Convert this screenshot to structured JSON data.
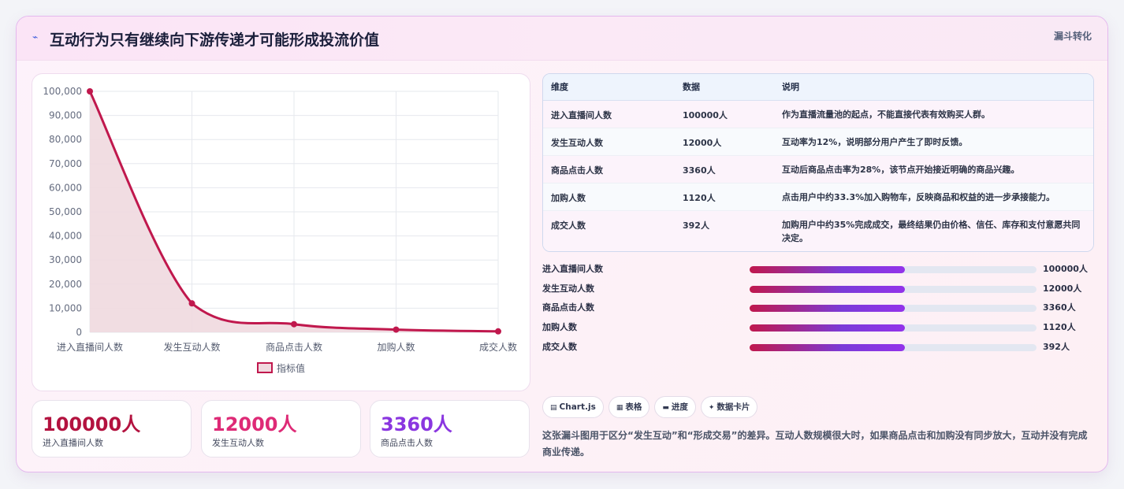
{
  "header": {
    "title": "互动行为只有继续向下游传递才可能形成投流价值",
    "tag": "漏斗转化",
    "icon": "trend-icon"
  },
  "chart_data": {
    "type": "line",
    "categories": [
      "进入直播间人数",
      "发生互动人数",
      "商品点击人数",
      "加购人数",
      "成交人数"
    ],
    "series": [
      {
        "name": "指标值",
        "values": [
          100000,
          12000,
          3360,
          1120,
          392
        ]
      }
    ],
    "ylim": [
      0,
      100000
    ],
    "yticks": [
      "100,000",
      "90,000",
      "80,000",
      "70,000",
      "60,000",
      "50,000",
      "40,000",
      "30,000",
      "20,000",
      "10,000",
      "0"
    ],
    "legend_position": "bottom",
    "fill": true,
    "colors": {
      "line": "#c0184d",
      "fill": "#f0d9df"
    }
  },
  "table": {
    "headers": [
      "维度",
      "数据",
      "说明"
    ],
    "rows": [
      [
        "进入直播间人数",
        "100000人",
        "作为直播流量池的起点，不能直接代表有效购买人群。"
      ],
      [
        "发生互动人数",
        "12000人",
        "互动率为12%，说明部分用户产生了即时反馈。"
      ],
      [
        "商品点击人数",
        "3360人",
        "互动后商品点击率为28%，该节点开始接近明确的商品兴趣。"
      ],
      [
        "加购人数",
        "1120人",
        "点击用户中约33.3%加入购物车，反映商品和权益的进一步承接能力。"
      ],
      [
        "成交人数",
        "392人",
        "加购用户中约35%完成成交，最终结果仍由价格、信任、库存和支付意愿共同决定。"
      ]
    ]
  },
  "progress": [
    {
      "label": "进入直播间人数",
      "value": "100000人",
      "fraction": 0.54
    },
    {
      "label": "发生互动人数",
      "value": "12000人",
      "fraction": 0.54
    },
    {
      "label": "商品点击人数",
      "value": "3360人",
      "fraction": 0.54
    },
    {
      "label": "加购人数",
      "value": "1120人",
      "fraction": 0.54
    },
    {
      "label": "成交人数",
      "value": "392人",
      "fraction": 0.54
    }
  ],
  "chips": [
    {
      "icon": "chart-icon",
      "glyph": "▤",
      "label": "Chart.js"
    },
    {
      "icon": "table-icon",
      "glyph": "▦",
      "label": "表格"
    },
    {
      "icon": "progress-icon",
      "glyph": "▬",
      "label": "进度"
    },
    {
      "icon": "card-icon",
      "glyph": "✦",
      "label": "数据卡片"
    }
  ],
  "note": "这张漏斗图用于区分“发生互动”和“形成交易”的差异。互动人数规模很大时，如果商品点击和加购没有同步放大，互动并没有完成商业传递。",
  "stats": [
    {
      "value": "100000人",
      "label": "进入直播间人数",
      "color": "#b3123f"
    },
    {
      "value": "12000人",
      "label": "发生互动人数",
      "color": "#de2a76"
    },
    {
      "value": "3360人",
      "label": "商品点击人数",
      "color": "#8a36e0"
    }
  ]
}
